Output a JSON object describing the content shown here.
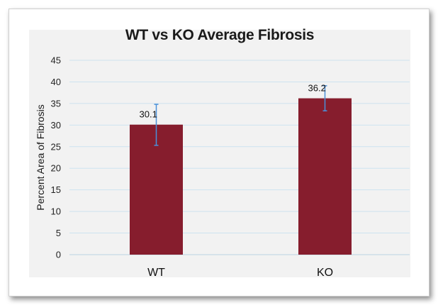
{
  "chart_data": {
    "type": "bar",
    "title": "WT vs KO Average Fibrosis",
    "xlabel": "",
    "ylabel": "Percent Area of Fibrosis",
    "categories": [
      "WT",
      "KO"
    ],
    "values": [
      30.1,
      36.2
    ],
    "error_bars": [
      {
        "low": 25.3,
        "high": 34.8
      },
      {
        "low": 33.3,
        "high": 39.1
      }
    ],
    "data_labels": [
      "30.1",
      "36.2"
    ],
    "ylim": [
      0,
      45
    ],
    "yticks": [
      "0",
      "5",
      "10",
      "15",
      "20",
      "25",
      "30",
      "35",
      "40",
      "45"
    ],
    "grid": true,
    "legend": "none",
    "colors": {
      "bar": "#861d2d",
      "error_bar": "#4a90d9",
      "grid": "#cde3ef",
      "plot_bg": "#f2f2f2"
    }
  }
}
